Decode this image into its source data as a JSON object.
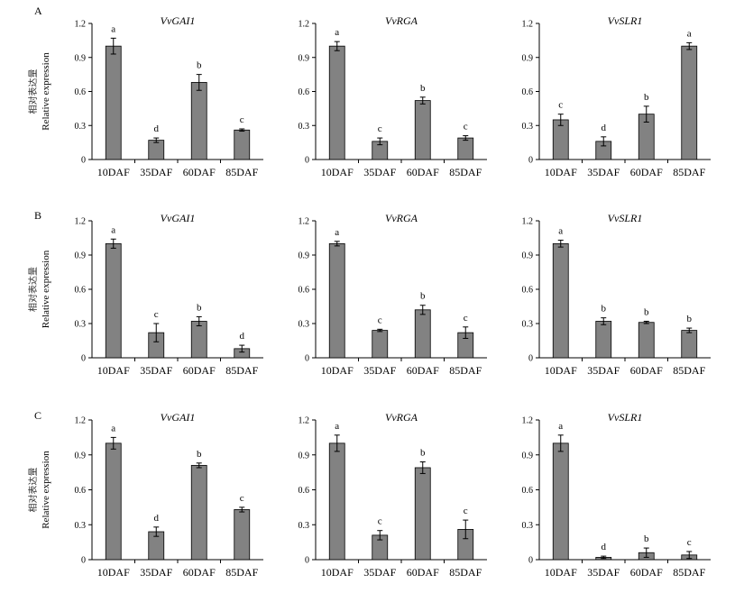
{
  "colors": {
    "bar": "#828282",
    "axis": "#000000",
    "ylabel_zh": "#333333"
  },
  "ylabel": {
    "zh": "相对表达量",
    "en": "Relative expression"
  },
  "categories": [
    "10DAF",
    "35DAF",
    "60DAF",
    "85DAF"
  ],
  "yticks": [
    "0",
    "0.3",
    "0.6",
    "0.9",
    "1.2"
  ],
  "rows": [
    {
      "label": "A"
    },
    {
      "label": "B"
    },
    {
      "label": "C"
    }
  ],
  "chart_data": [
    {
      "type": "bar",
      "panel": "A",
      "title": "VvGAI1",
      "categories": [
        "10DAF",
        "35DAF",
        "60DAF",
        "85DAF"
      ],
      "values": [
        1.0,
        0.17,
        0.68,
        0.26
      ],
      "errors": [
        0.07,
        0.02,
        0.07,
        0.01
      ],
      "letters": [
        "a",
        "d",
        "b",
        "c"
      ],
      "ylim": [
        0,
        1.2
      ]
    },
    {
      "type": "bar",
      "panel": "A",
      "title": "VvRGA",
      "categories": [
        "10DAF",
        "35DAF",
        "60DAF",
        "85DAF"
      ],
      "values": [
        1.0,
        0.16,
        0.52,
        0.19
      ],
      "errors": [
        0.04,
        0.03,
        0.03,
        0.02
      ],
      "letters": [
        "a",
        "c",
        "b",
        "c"
      ],
      "ylim": [
        0,
        1.2
      ]
    },
    {
      "type": "bar",
      "panel": "A",
      "title": "VvSLR1",
      "categories": [
        "10DAF",
        "35DAF",
        "60DAF",
        "85DAF"
      ],
      "values": [
        0.35,
        0.16,
        0.4,
        1.0
      ],
      "errors": [
        0.05,
        0.04,
        0.07,
        0.03
      ],
      "letters": [
        "c",
        "d",
        "b",
        "a"
      ],
      "ylim": [
        0,
        1.2
      ]
    },
    {
      "type": "bar",
      "panel": "B",
      "title": "VvGAI1",
      "categories": [
        "10DAF",
        "35DAF",
        "60DAF",
        "85DAF"
      ],
      "values": [
        1.0,
        0.22,
        0.32,
        0.08
      ],
      "errors": [
        0.04,
        0.08,
        0.04,
        0.03
      ],
      "letters": [
        "a",
        "c",
        "b",
        "d"
      ],
      "ylim": [
        0,
        1.2
      ]
    },
    {
      "type": "bar",
      "panel": "B",
      "title": "VvRGA",
      "categories": [
        "10DAF",
        "35DAF",
        "60DAF",
        "85DAF"
      ],
      "values": [
        1.0,
        0.24,
        0.42,
        0.22
      ],
      "errors": [
        0.02,
        0.01,
        0.04,
        0.05
      ],
      "letters": [
        "a",
        "c",
        "b",
        "c"
      ],
      "ylim": [
        0,
        1.2
      ]
    },
    {
      "type": "bar",
      "panel": "B",
      "title": "VvSLR1",
      "categories": [
        "10DAF",
        "35DAF",
        "60DAF",
        "85DAF"
      ],
      "values": [
        1.0,
        0.32,
        0.31,
        0.24
      ],
      "errors": [
        0.03,
        0.03,
        0.01,
        0.02
      ],
      "letters": [
        "a",
        "b",
        "b",
        "b"
      ],
      "ylim": [
        0,
        1.2
      ]
    },
    {
      "type": "bar",
      "panel": "C",
      "title": "VvGAI1",
      "categories": [
        "10DAF",
        "35DAF",
        "60DAF",
        "85DAF"
      ],
      "values": [
        1.0,
        0.24,
        0.81,
        0.43
      ],
      "errors": [
        0.05,
        0.04,
        0.02,
        0.02
      ],
      "letters": [
        "a",
        "d",
        "b",
        "c"
      ],
      "ylim": [
        0,
        1.2
      ]
    },
    {
      "type": "bar",
      "panel": "C",
      "title": "VvRGA",
      "categories": [
        "10DAF",
        "35DAF",
        "60DAF",
        "85DAF"
      ],
      "values": [
        1.0,
        0.21,
        0.79,
        0.26
      ],
      "errors": [
        0.07,
        0.04,
        0.05,
        0.08
      ],
      "letters": [
        "a",
        "c",
        "b",
        "c"
      ],
      "ylim": [
        0,
        1.2
      ]
    },
    {
      "type": "bar",
      "panel": "C",
      "title": "VvSLR1",
      "categories": [
        "10DAF",
        "35DAF",
        "60DAF",
        "85DAF"
      ],
      "values": [
        1.0,
        0.02,
        0.06,
        0.04
      ],
      "errors": [
        0.07,
        0.01,
        0.04,
        0.03
      ],
      "letters": [
        "a",
        "d",
        "b",
        "c"
      ],
      "ylim": [
        0,
        1.2
      ]
    }
  ]
}
